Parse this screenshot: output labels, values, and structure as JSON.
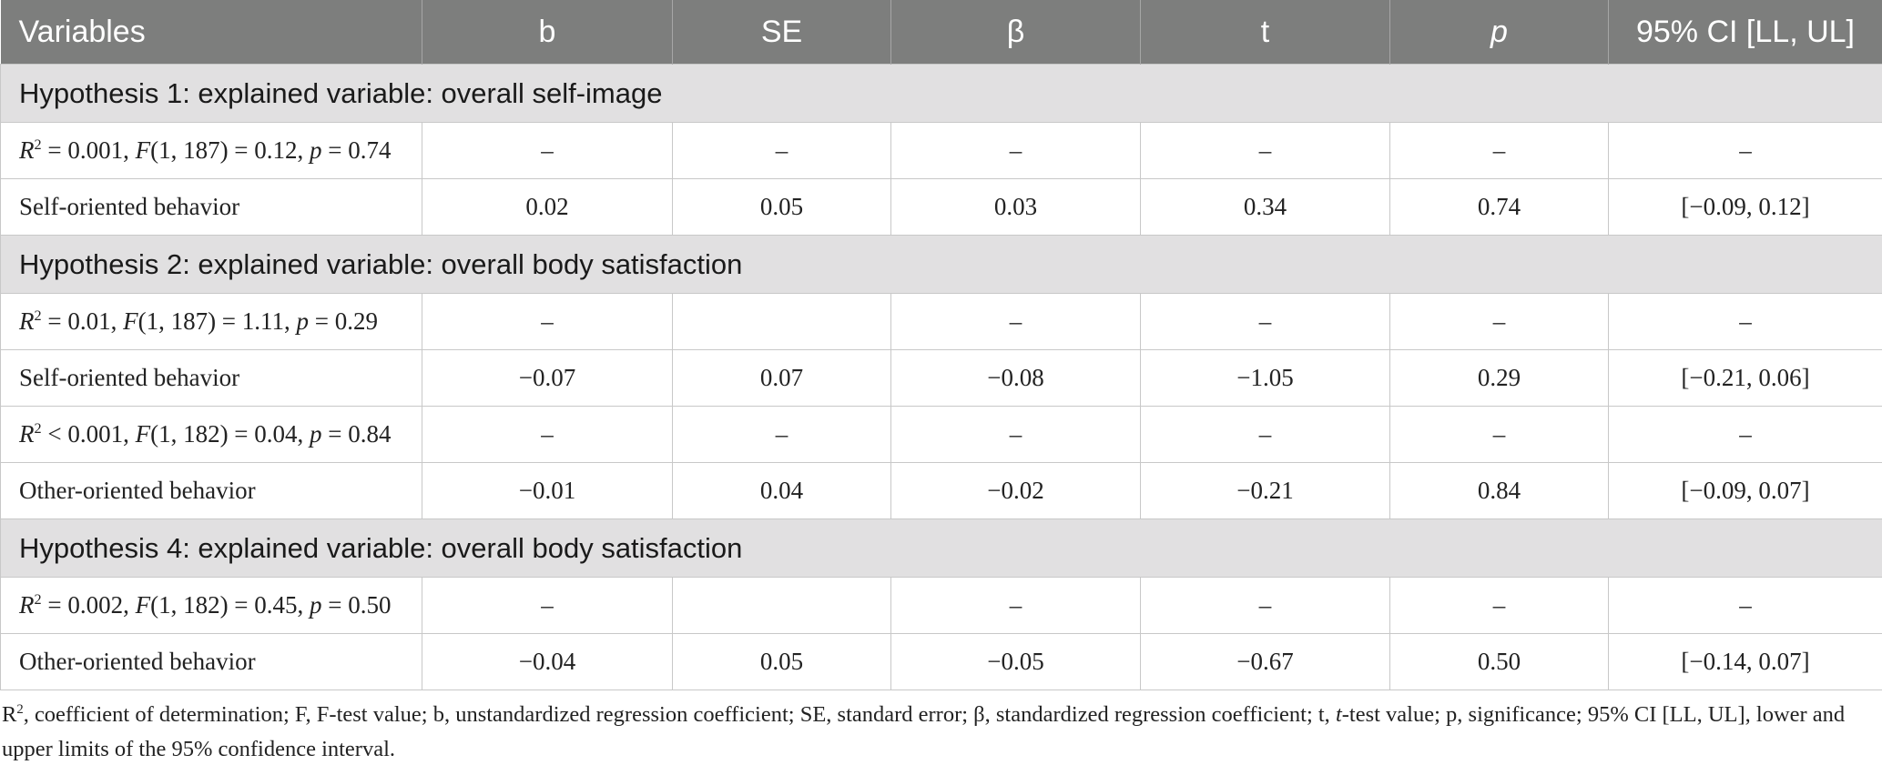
{
  "header": {
    "variables": "Variables",
    "b": "b",
    "se": "SE",
    "beta": "β",
    "t": "t",
    "p": "p",
    "ci": "95% CI [LL, UL]"
  },
  "sections": [
    {
      "title": "Hypothesis 1: explained variable: overall self-image",
      "model": {
        "r2_sym": "R",
        "r2_sup": "2",
        "r2_rest": " = 0.001, ",
        "f_sym": "F",
        "f_rest": "(1, 187) = 0.12, ",
        "p_sym": "p",
        "p_rest": " = 0.74",
        "cells": [
          "–",
          "–",
          "–",
          "–",
          "–",
          "–"
        ]
      },
      "predictor": {
        "label": "Self-oriented behavior",
        "cells": [
          "0.02",
          "0.05",
          "0.03",
          "0.34",
          "0.74",
          "[−0.09, 0.12]"
        ]
      }
    },
    {
      "title": "Hypothesis 2: explained variable: overall body satisfaction",
      "model": {
        "r2_sym": "R",
        "r2_sup": "2",
        "r2_rest": " = 0.01, ",
        "f_sym": "F",
        "f_rest": "(1, 187) = 1.11, ",
        "p_sym": "p",
        "p_rest": " = 0.29",
        "cells": [
          "–",
          "",
          "–",
          "–",
          "–",
          "–"
        ]
      },
      "predictor": {
        "label": "Self-oriented behavior",
        "cells": [
          "−0.07",
          "0.07",
          "−0.08",
          "−1.05",
          "0.29",
          "[−0.21, 0.06]"
        ]
      },
      "model2": {
        "r2_sym": "R",
        "r2_sup": "2",
        "r2_rest": " < 0.001, ",
        "f_sym": "F",
        "f_rest": "(1, 182) = 0.04, ",
        "p_sym": "p",
        "p_rest": " = 0.84",
        "cells": [
          "–",
          "–",
          "–",
          "–",
          "–",
          "–"
        ]
      },
      "predictor2": {
        "label": "Other-oriented behavior",
        "cells": [
          "−0.01",
          "0.04",
          "−0.02",
          "−0.21",
          "0.84",
          "[−0.09, 0.07]"
        ]
      }
    },
    {
      "title": "Hypothesis 4: explained variable: overall body satisfaction",
      "model": {
        "r2_sym": "R",
        "r2_sup": "2",
        "r2_rest": " = 0.002, ",
        "f_sym": "F",
        "f_rest": "(1, 182) = 0.45, ",
        "p_sym": "p",
        "p_rest": " = 0.50",
        "cells": [
          "–",
          "",
          "–",
          "–",
          "–",
          "–"
        ]
      },
      "predictor": {
        "label": "Other-oriented behavior",
        "cells": [
          "−0.04",
          "0.05",
          "−0.05",
          "−0.67",
          "0.50",
          "[−0.14, 0.07]"
        ]
      }
    }
  ],
  "note": {
    "r_sym": "R",
    "r_sup": "2",
    "part1": ", coefficient of determination; F, F-test value; b, unstandardized regression coefficient; SE, standard error; β, standardized regression coefficient; t, ",
    "t_italic": "t",
    "part2": "-test value; p, significance; 95% CI [LL, UL], lower and upper limits of the 95% confidence interval."
  }
}
